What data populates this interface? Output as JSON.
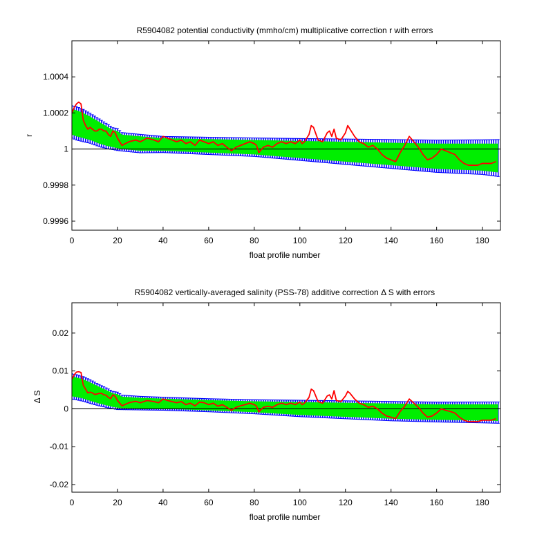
{
  "chart_data": [
    {
      "type": "line",
      "title": "R5904082 potential conductivity (mmho/cm) multiplicative correction r with errors",
      "xlabel": "float profile number",
      "ylabel": "r",
      "xlim": [
        0,
        188
      ],
      "ylim": [
        0.99955,
        1.0006
      ],
      "xticks": [
        0,
        20,
        40,
        60,
        80,
        100,
        120,
        140,
        160,
        180
      ],
      "xtick_labels": [
        "0",
        "20",
        "40",
        "60",
        "80",
        "100",
        "120",
        "140",
        "160",
        "180"
      ],
      "yticks": [
        0.9996,
        0.9998,
        1.0,
        1.0002,
        1.0004
      ],
      "ytick_labels": [
        "0.9996",
        "0.9998",
        "1",
        "1.0002",
        "1.0004"
      ],
      "reference_line": 1.0,
      "colors": {
        "band": "#00ee00",
        "error": "#0000ff",
        "series": "#ff0000",
        "reference": "#000000"
      },
      "series": [
        {
          "band": {
            "x": [
              0,
              2,
              5,
              8,
              12,
              16,
              18,
              20,
              22,
              30,
              40,
              60,
              80,
              100,
              120,
              140,
              160,
              180,
              187
            ],
            "upper": [
              1.00022,
              1.000215,
              1.0002,
              1.00018,
              1.00015,
              1.00012,
              1.000105,
              1.0001,
              1.00008,
              1.00007,
              1.00006,
              1.000055,
              1.00005,
              1.000045,
              1.00004,
              1.000035,
              1.00003,
              1.00003,
              1.00003
            ],
            "lower": [
              1.00008,
              1.00007,
              1.00006,
              1.00005,
              1.00003,
              1.000015,
              1.00001,
              1.000005,
              1.0,
              0.99999,
              0.99999,
              0.99998,
              0.99997,
              0.99995,
              0.99993,
              0.99991,
              0.99989,
              0.99988,
              0.99987
            ]
          },
          "values": {
            "x": [
              0,
              1,
              2,
              3,
              4,
              5,
              6,
              7,
              8,
              9,
              10,
              11,
              12,
              13,
              14,
              15,
              16,
              17,
              18,
              19,
              20,
              22,
              25,
              28,
              30,
              33,
              36,
              38,
              40,
              42,
              44,
              46,
              48,
              50,
              52,
              54,
              56,
              58,
              60,
              62,
              64,
              66,
              68,
              70,
              72,
              74,
              76,
              78,
              80,
              81,
              82,
              84,
              86,
              88,
              90,
              92,
              94,
              96,
              98,
              100,
              101,
              102,
              104,
              105,
              106,
              108,
              110,
              112,
              113,
              114,
              115,
              116,
              118,
              120,
              121,
              122,
              124,
              126,
              128,
              130,
              132,
              134,
              136,
              138,
              140,
              142,
              144,
              146,
              148,
              150,
              152,
              154,
              156,
              158,
              160,
              162,
              164,
              166,
              168,
              170,
              172,
              174,
              176,
              178,
              180,
              182,
              184,
              186
            ],
            "y": [
              1.0002,
              1.00023,
              1.00025,
              1.00026,
              1.00025,
              1.00016,
              1.00013,
              1.00011,
              1.00012,
              1.00011,
              1.0001,
              1.0001,
              1.00011,
              1.00011,
              1.0001,
              1.0001,
              1.00008,
              1.00007,
              1.0001,
              1.00009,
              1.00006,
              1.00002,
              1.00004,
              1.00005,
              1.00004,
              1.00006,
              1.00005,
              1.00004,
              1.00007,
              1.00006,
              1.00005,
              1.00004,
              1.00005,
              1.00003,
              1.00004,
              1.00002,
              1.00005,
              1.00004,
              1.00003,
              1.00004,
              1.00002,
              1.00003,
              1.00001,
              0.99999,
              1.00001,
              1.00002,
              1.00003,
              1.00004,
              1.00003,
              1.00002,
              0.99998,
              1.00001,
              1.00002,
              1.00001,
              1.00003,
              1.00004,
              1.00003,
              1.00004,
              1.00003,
              1.00005,
              1.00003,
              1.00004,
              1.00008,
              1.00013,
              1.00012,
              1.00005,
              1.00004,
              1.00009,
              1.0001,
              1.00007,
              1.00011,
              1.00006,
              1.00005,
              1.00009,
              1.00013,
              1.00011,
              1.00007,
              1.00004,
              1.00003,
              1.00001,
              1.00002,
              1.0,
              0.99997,
              0.99995,
              0.99994,
              0.99993,
              0.99998,
              1.00002,
              1.00007,
              1.00004,
              1.00001,
              0.99997,
              0.99994,
              0.99995,
              0.99997,
              1.0,
              0.99999,
              0.99998,
              0.99997,
              0.99994,
              0.99992,
              0.99991,
              0.99991,
              0.99991,
              0.99992,
              0.99992,
              0.99992,
              0.99993
            ]
          }
        }
      ]
    },
    {
      "type": "line",
      "title": "R5904082 vertically-averaged salinity (PSS-78) additive correction Δ S with errors",
      "xlabel": "float profile number",
      "ylabel": "Δ S",
      "xlim": [
        0,
        188
      ],
      "ylim": [
        -0.022,
        0.028
      ],
      "xticks": [
        0,
        20,
        40,
        60,
        80,
        100,
        120,
        140,
        160,
        180
      ],
      "xtick_labels": [
        "0",
        "20",
        "40",
        "60",
        "80",
        "100",
        "120",
        "140",
        "160",
        "180"
      ],
      "yticks": [
        -0.02,
        -0.01,
        0,
        0.01,
        0.02
      ],
      "ytick_labels": [
        "-0.02",
        "-0.01",
        "0",
        "0.01",
        "0.02"
      ],
      "reference_line": 0,
      "colors": {
        "band": "#00ee00",
        "error": "#0000ff",
        "series": "#ff0000",
        "reference": "#000000"
      },
      "series": [
        {
          "band": {
            "x": [
              0,
              2,
              5,
              8,
              12,
              16,
              18,
              20,
              22,
              30,
              40,
              60,
              80,
              100,
              120,
              140,
              160,
              180,
              187
            ],
            "upper": [
              0.0085,
              0.0083,
              0.0078,
              0.007,
              0.0058,
              0.0047,
              0.0041,
              0.0039,
              0.0032,
              0.0029,
              0.0027,
              0.0023,
              0.002,
              0.0018,
              0.0016,
              0.0014,
              0.0012,
              0.0012,
              0.0012
            ],
            "lower": [
              0.0033,
              0.0031,
              0.0027,
              0.0021,
              0.0014,
              0.0008,
              0.0005,
              0.0003,
              0.0002,
              0.0001,
              0.0,
              -0.0004,
              -0.0009,
              -0.0016,
              -0.0021,
              -0.0026,
              -0.0029,
              -0.0031,
              -0.0032
            ]
          },
          "values": {
            "x": [
              0,
              1,
              2,
              3,
              4,
              5,
              6,
              7,
              8,
              9,
              10,
              11,
              12,
              13,
              14,
              15,
              16,
              17,
              18,
              19,
              20,
              22,
              25,
              28,
              30,
              33,
              36,
              38,
              40,
              42,
              44,
              46,
              48,
              50,
              52,
              54,
              56,
              58,
              60,
              62,
              64,
              66,
              68,
              70,
              72,
              74,
              76,
              78,
              80,
              81,
              82,
              84,
              86,
              88,
              90,
              92,
              94,
              96,
              98,
              100,
              101,
              102,
              104,
              105,
              106,
              108,
              110,
              112,
              113,
              114,
              115,
              116,
              118,
              120,
              121,
              122,
              124,
              126,
              128,
              130,
              132,
              134,
              136,
              138,
              140,
              142,
              144,
              146,
              148,
              150,
              152,
              154,
              156,
              158,
              160,
              162,
              164,
              166,
              168,
              170,
              172,
              174,
              176,
              178,
              180,
              182,
              184,
              186
            ],
            "y": [
              0.0078,
              0.009,
              0.0097,
              0.0098,
              0.0096,
              0.0062,
              0.0052,
              0.0042,
              0.0044,
              0.0042,
              0.0038,
              0.0039,
              0.0041,
              0.0041,
              0.0037,
              0.0036,
              0.003,
              0.0027,
              0.0037,
              0.0033,
              0.0022,
              0.0008,
              0.0016,
              0.002,
              0.0016,
              0.0022,
              0.0019,
              0.0016,
              0.0026,
              0.0022,
              0.0019,
              0.0016,
              0.0019,
              0.0011,
              0.0015,
              0.0008,
              0.0018,
              0.0016,
              0.0011,
              0.0015,
              0.0007,
              0.0011,
              0.0004,
              -0.0004,
              0.0004,
              0.0008,
              0.0011,
              0.0015,
              0.0011,
              0.0007,
              -0.0008,
              0.0004,
              0.0007,
              0.0004,
              0.0011,
              0.0015,
              0.0011,
              0.0015,
              0.0011,
              0.0018,
              0.0011,
              0.0015,
              0.003,
              0.0052,
              0.0048,
              0.0019,
              0.0015,
              0.0034,
              0.0037,
              0.0026,
              0.0048,
              0.0022,
              0.0019,
              0.0034,
              0.0046,
              0.0041,
              0.0026,
              0.0015,
              0.0011,
              0.0004,
              0.0007,
              0.0,
              -0.0011,
              -0.0019,
              -0.0022,
              -0.0026,
              -0.0007,
              0.0007,
              0.0026,
              0.0015,
              0.0004,
              -0.0011,
              -0.0022,
              -0.0019,
              -0.0011,
              0.0,
              -0.0004,
              -0.0007,
              -0.0011,
              -0.0022,
              -0.003,
              -0.0034,
              -0.0034,
              -0.0034,
              -0.003,
              -0.003,
              -0.003,
              -0.0026
            ]
          }
        }
      ]
    }
  ]
}
